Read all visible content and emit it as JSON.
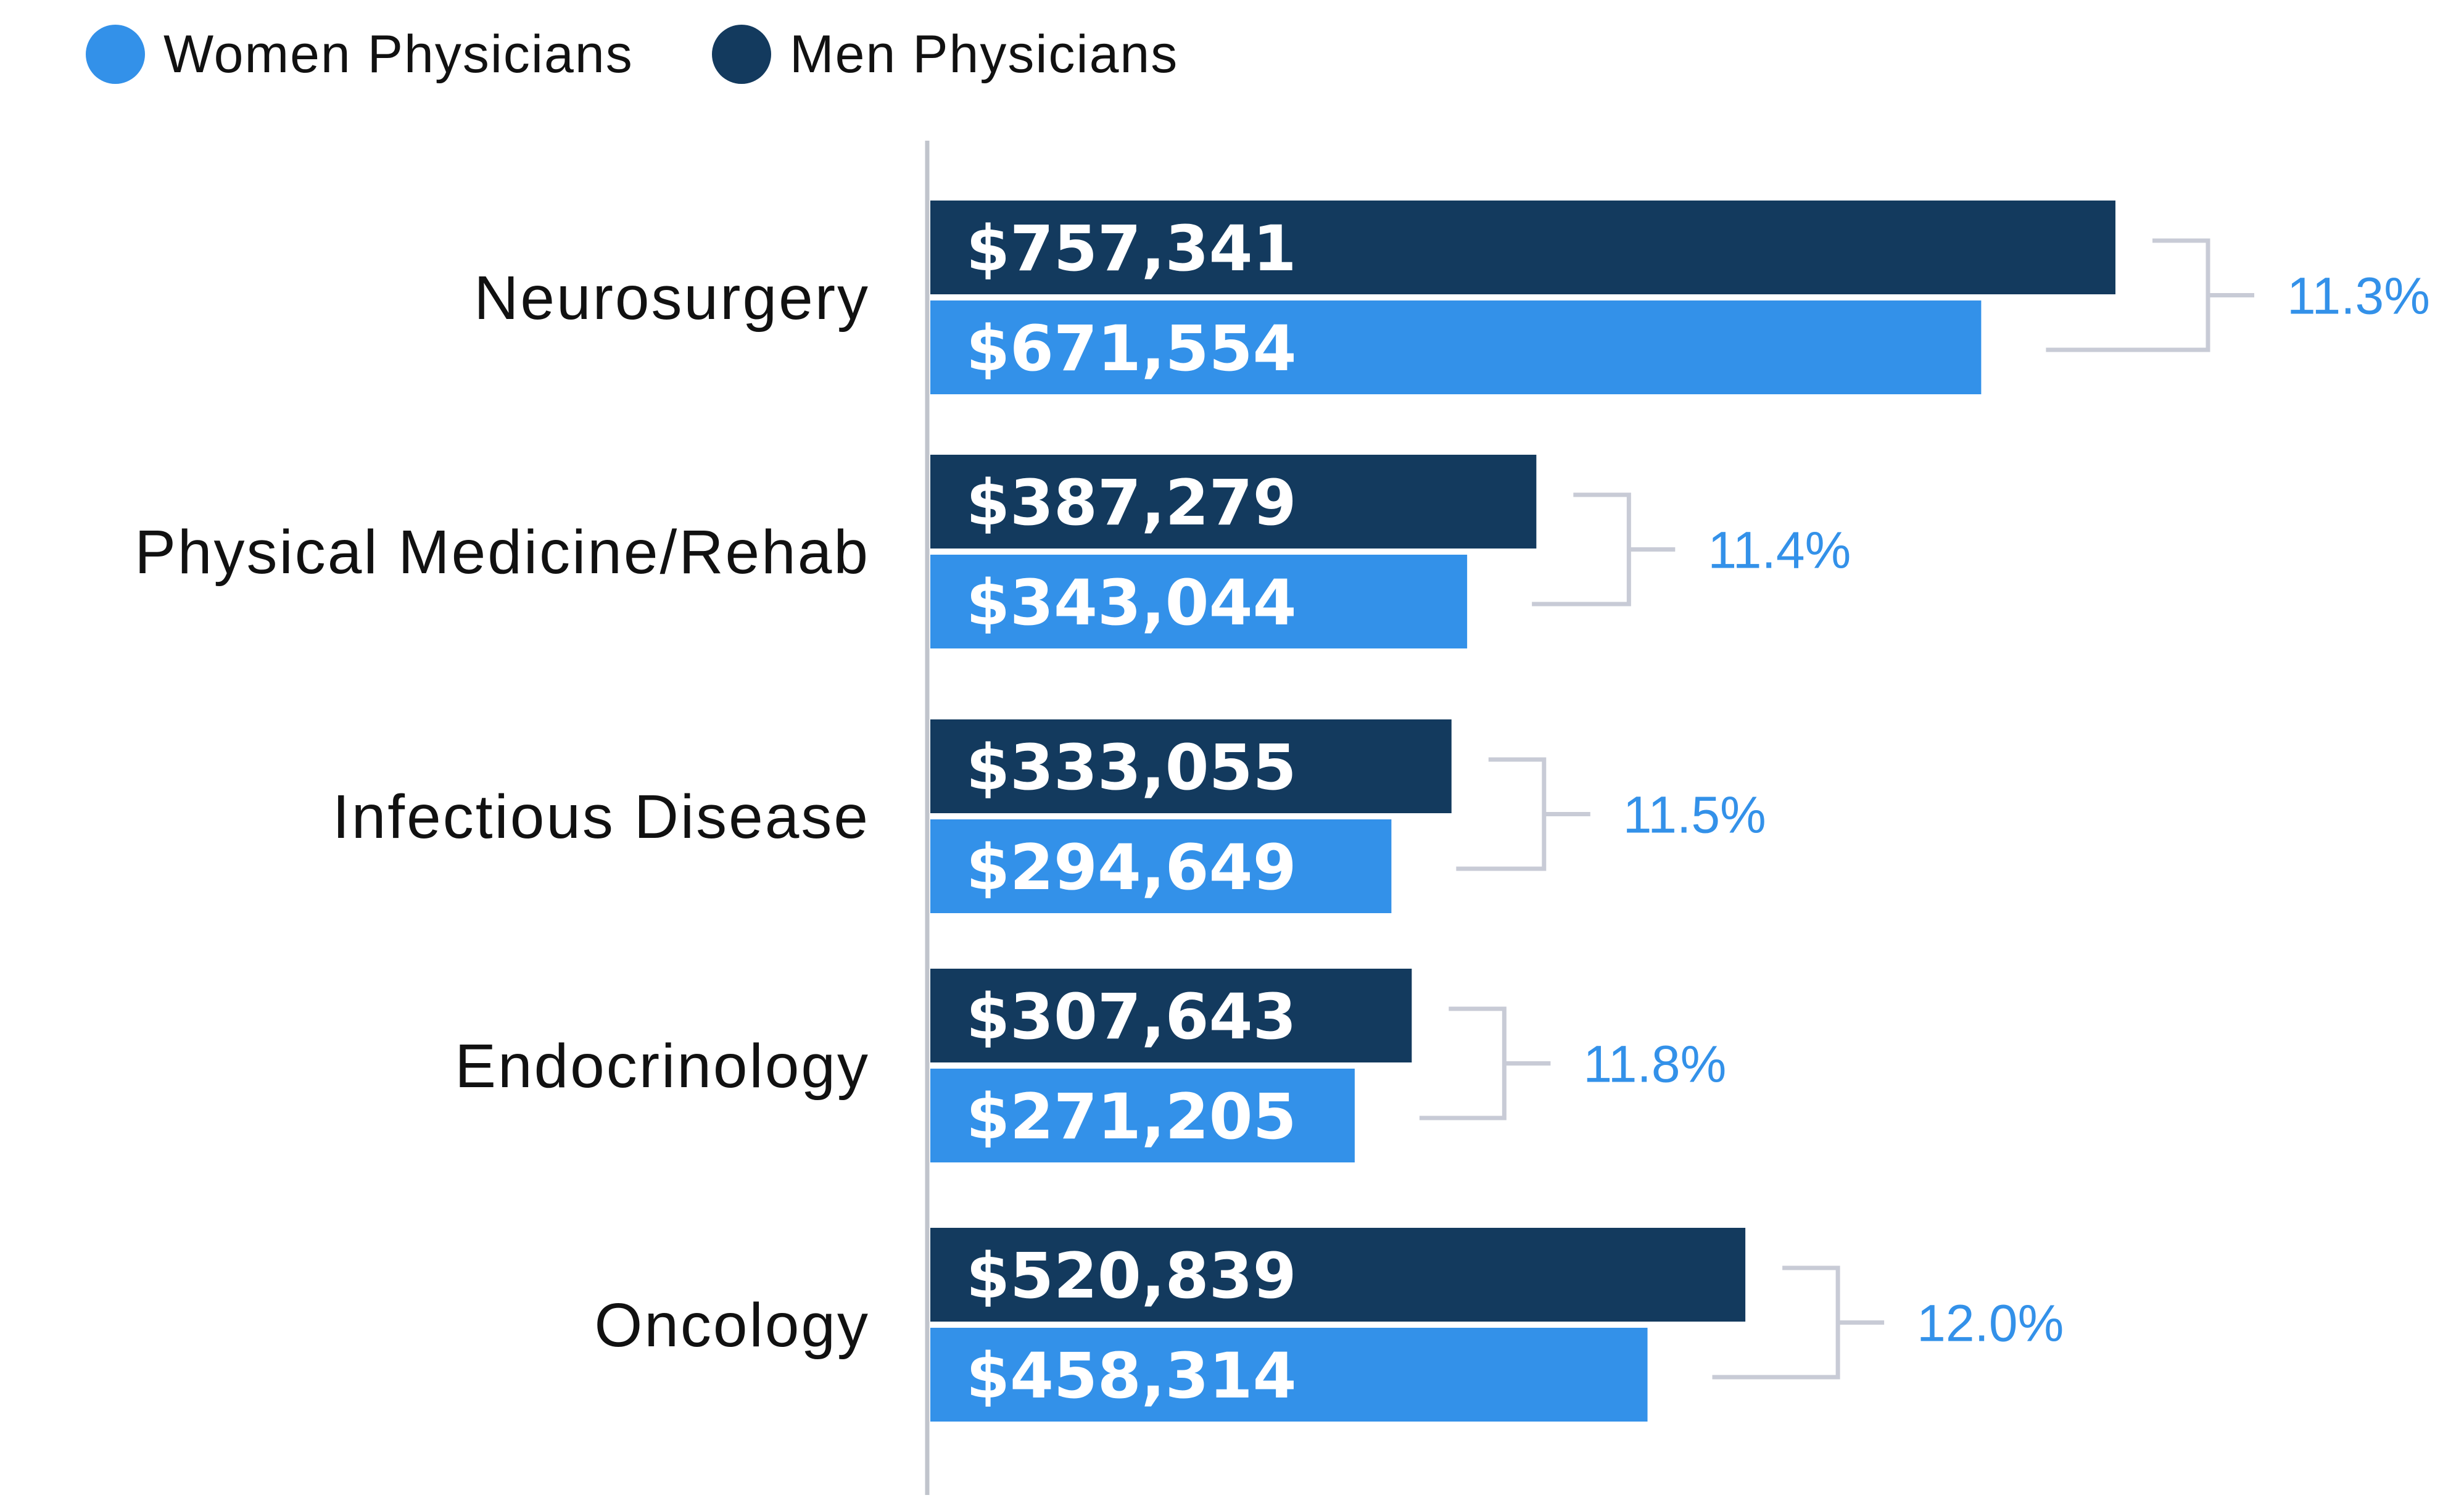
{
  "legend": {
    "women_label": "Women Physicians",
    "men_label": "Men Physicians"
  },
  "colors": {
    "women": "#3391E9",
    "men": "#133A5E",
    "bracket": "#C8CBD6",
    "gap_text": "#3391E9",
    "axis": "#C0C4CC"
  },
  "chart_data": {
    "type": "bar",
    "orientation": "horizontal",
    "categories": [
      "Neurosurgery",
      "Physical Medicine/Rehab",
      "Infectious Disease",
      "Endocrinology",
      "Oncology"
    ],
    "series": [
      {
        "name": "Men Physicians",
        "values": [
          757341,
          387279,
          333055,
          307643,
          520839
        ],
        "labels": [
          "$757,341",
          "$387,279",
          "$333,055",
          "$307,643",
          "$520,839"
        ]
      },
      {
        "name": "Women Physicians",
        "values": [
          671554,
          343044,
          294649,
          271205,
          458314
        ],
        "labels": [
          "$671,554",
          "$343,044",
          "$294,649",
          "$271,205",
          "$458,314"
        ]
      }
    ],
    "gap_labels": [
      "11.3%",
      "11.4%",
      "11.5%",
      "11.8%",
      "12.0%"
    ],
    "xlim": [
      0,
      757341
    ],
    "grid": false,
    "legend_position": "top-left"
  }
}
